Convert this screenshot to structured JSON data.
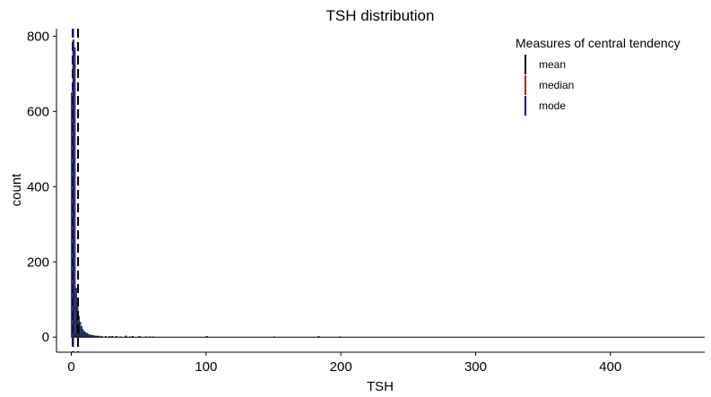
{
  "chart_data": {
    "type": "bar",
    "title": "TSH distribution",
    "xlabel": "TSH",
    "ylabel": "count",
    "xlim": [
      -11,
      470
    ],
    "ylim": [
      -40,
      820
    ],
    "xticks": [
      0,
      100,
      200,
      300,
      400
    ],
    "yticks": [
      0,
      200,
      400,
      600,
      800
    ],
    "grid": false,
    "bar_fill": "#3f5aa6",
    "bar_outline": "#000000",
    "bins": {
      "binwidth": 1,
      "x": [
        0,
        1,
        2,
        3,
        4,
        5,
        6,
        7,
        8,
        9,
        10,
        11,
        12,
        13,
        14,
        15,
        16,
        17,
        18,
        19,
        20,
        22,
        25,
        28,
        30,
        33,
        36,
        40,
        43,
        45,
        50,
        55,
        58,
        60,
        100,
        150,
        183,
        199
      ],
      "count": [
        650,
        790,
        770,
        130,
        80,
        55,
        40,
        28,
        20,
        15,
        12,
        10,
        8,
        6,
        5,
        5,
        4,
        3,
        3,
        2,
        3,
        2,
        2,
        2,
        2,
        2,
        1,
        3,
        1,
        2,
        2,
        1,
        1,
        1,
        2,
        1,
        2,
        1
      ]
    },
    "reference_lines": [
      {
        "name": "mean",
        "x": 5.0,
        "color": "#000000",
        "dash": "dashed"
      },
      {
        "name": "median",
        "x": 1.4,
        "color": "#b22222",
        "dash": "dashed"
      },
      {
        "name": "mode",
        "x": 1.0,
        "color": "#00008b",
        "dash": "dashed"
      }
    ],
    "legend": {
      "title": "Measures of central tendency",
      "position": "top-right",
      "items": [
        {
          "label": "mean",
          "color": "#000000"
        },
        {
          "label": "median",
          "color": "#b22222"
        },
        {
          "label": "mode",
          "color": "#00008b"
        }
      ]
    }
  }
}
